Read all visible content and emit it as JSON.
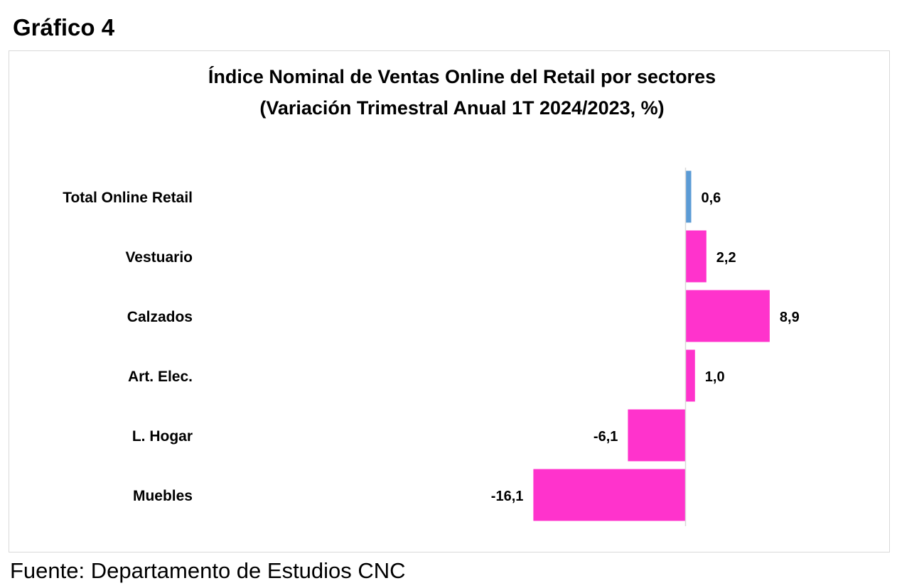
{
  "figure_label": "Gráfico 4",
  "source": "Fuente: Departamento de Estudios CNC",
  "colors": {
    "total": "#5b9bd5",
    "sector": "#ff33cc",
    "axis": "#d9d9d9"
  },
  "chart_data": {
    "type": "bar",
    "orientation": "horizontal",
    "title": "Índice Nominal de Ventas Online del Retail  por sectores",
    "subtitle": "(Variación Trimestral Anual 1T 2024/2023, %)",
    "xlabel": "",
    "ylabel": "",
    "categories": [
      "Total Online Retail",
      "Vestuario",
      "Calzados",
      "Art. Elec.",
      "L. Hogar",
      "Muebles"
    ],
    "values": [
      0.6,
      2.2,
      8.9,
      1.0,
      -6.1,
      -16.1
    ],
    "data_labels": [
      "0,6",
      "2,2",
      "8,9",
      "1,0",
      "-6,1",
      "-16,1"
    ],
    "bar_colors": [
      "#5b9bd5",
      "#ff33cc",
      "#ff33cc",
      "#ff33cc",
      "#ff33cc",
      "#ff33cc"
    ],
    "legend": "none",
    "grid": false
  }
}
